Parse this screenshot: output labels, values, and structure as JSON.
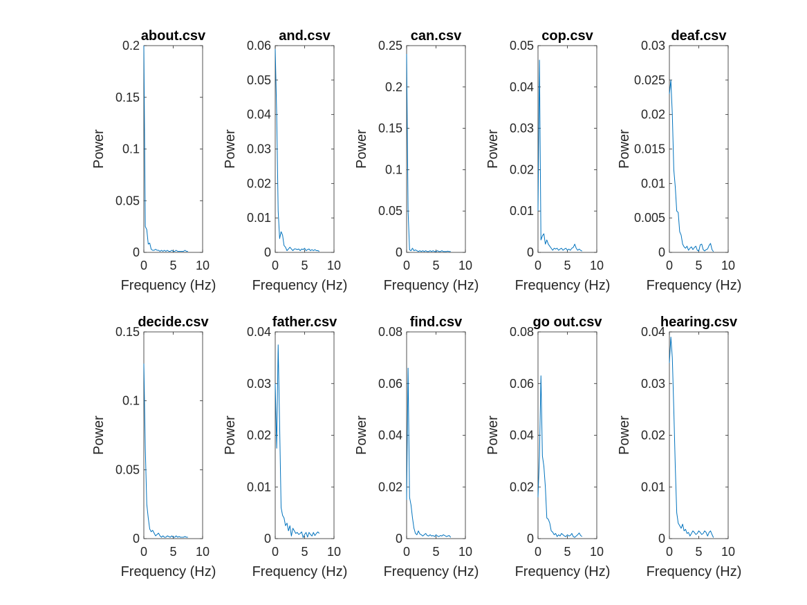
{
  "figure": {
    "background": "#ffffff",
    "line_color": "#0072bd",
    "axis_color": "#262626"
  },
  "chart_data": [
    {
      "type": "line",
      "title": "about.csv",
      "xlabel": "Frequency (Hz)",
      "ylabel": "Power",
      "xlim": [
        0,
        10
      ],
      "ylim": [
        0,
        0.2
      ],
      "xticks": [
        "0",
        "5",
        "10"
      ],
      "yticks": [
        "0",
        "0.05",
        "0.1",
        "0.15",
        "0.2"
      ],
      "x": [
        0,
        0.25,
        0.5,
        0.75,
        1,
        1.25,
        1.5,
        1.75,
        2,
        2.25,
        2.5,
        2.75,
        3,
        3.25,
        3.5,
        3.75,
        4,
        4.25,
        4.5,
        4.75,
        5,
        5.25,
        5.5,
        5.75,
        6,
        6.25,
        6.5,
        6.75,
        7,
        7.25,
        7.5
      ],
      "y": [
        0.2,
        0.025,
        0.022,
        0.008,
        0.009,
        0.003,
        0.002,
        0.002,
        0.003,
        0.002,
        0.002,
        0.001,
        0.002,
        0.001,
        0.002,
        0.001,
        0.002,
        0.001,
        0.001,
        0.002,
        0.001,
        0.001,
        0.002,
        0.001,
        0.001,
        0.001,
        0.001,
        0.001,
        0.002,
        0.001,
        0.001
      ]
    },
    {
      "type": "line",
      "title": "and.csv",
      "xlabel": "Frequency (Hz)",
      "ylabel": "Power",
      "xlim": [
        0,
        10
      ],
      "ylim": [
        0,
        0.06
      ],
      "xticks": [
        "0",
        "5",
        "10"
      ],
      "yticks": [
        "0",
        "0.01",
        "0.02",
        "0.03",
        "0.04",
        "0.05",
        "0.06"
      ],
      "x": [
        0,
        0.25,
        0.5,
        0.75,
        1,
        1.25,
        1.5,
        1.75,
        2,
        2.25,
        2.5,
        2.75,
        3,
        3.25,
        3.5,
        3.75,
        4,
        4.25,
        4.5,
        4.75,
        5,
        5.25,
        5.5,
        5.75,
        6,
        6.25,
        6.5,
        6.75,
        7,
        7.25,
        7.5
      ],
      "y": [
        0.059,
        0.04,
        0.012,
        0.004,
        0.006,
        0.005,
        0.002,
        0.0015,
        0.0005,
        0.001,
        0.0015,
        0.001,
        0.0005,
        0.001,
        0.001,
        0.0008,
        0.001,
        0.0005,
        0.001,
        0.0008,
        0.0012,
        0.0005,
        0.0008,
        0.001,
        0.0005,
        0.0008,
        0.0005,
        0.0008,
        0.0005,
        0.0005,
        0.0003
      ]
    },
    {
      "type": "line",
      "title": "can.csv",
      "xlabel": "Frequency (Hz)",
      "ylabel": "Power",
      "xlim": [
        0,
        10
      ],
      "ylim": [
        0,
        0.25
      ],
      "xticks": [
        "0",
        "5",
        "10"
      ],
      "yticks": [
        "0",
        "0.05",
        "0.1",
        "0.15",
        "0.2",
        "0.25"
      ],
      "x": [
        0,
        0.25,
        0.5,
        0.75,
        1,
        1.25,
        1.5,
        1.75,
        2,
        2.25,
        2.5,
        2.75,
        3,
        3.25,
        3.5,
        3.75,
        4,
        4.25,
        4.5,
        4.75,
        5,
        5.25,
        5.5,
        5.75,
        6,
        6.25,
        6.5,
        6.75,
        7,
        7.25,
        7.5
      ],
      "y": [
        0.24,
        0.05,
        0.003,
        0.002,
        0.005,
        0.002,
        0.003,
        0.002,
        0.001,
        0.002,
        0.001,
        0.002,
        0.001,
        0.002,
        0.001,
        0.001,
        0.002,
        0.001,
        0.002,
        0.001,
        0.001,
        0.002,
        0.001,
        0.001,
        0.002,
        0.001,
        0.001,
        0.001,
        0.0015,
        0.001,
        0.001
      ]
    },
    {
      "type": "line",
      "title": "cop.csv",
      "xlabel": "Frequency (Hz)",
      "ylabel": "Power",
      "xlim": [
        0,
        10
      ],
      "ylim": [
        0,
        0.05
      ],
      "xticks": [
        "0",
        "5",
        "10"
      ],
      "yticks": [
        "0",
        "0.01",
        "0.02",
        "0.03",
        "0.04",
        "0.05"
      ],
      "x": [
        0,
        0.25,
        0.5,
        0.75,
        1,
        1.25,
        1.5,
        1.75,
        2,
        2.25,
        2.5,
        2.75,
        3,
        3.25,
        3.5,
        3.75,
        4,
        4.25,
        4.5,
        4.75,
        5,
        5.25,
        5.5,
        5.75,
        6,
        6.25,
        6.5,
        6.75,
        7,
        7.25,
        7.5
      ],
      "y": [
        0.01,
        0.0465,
        0.003,
        0.004,
        0.0045,
        0.002,
        0.003,
        0.002,
        0.0015,
        0.001,
        0.0005,
        0.001,
        0.0008,
        0.001,
        0.0005,
        0.0008,
        0.001,
        0.0005,
        0.0008,
        0.001,
        0.0005,
        0.0008,
        0.0005,
        0.001,
        0.0012,
        0.002,
        0.001,
        0.0005,
        0.0008,
        0.0005,
        0.0003
      ]
    },
    {
      "type": "line",
      "title": "deaf.csv",
      "xlabel": "Frequency (Hz)",
      "ylabel": "Power",
      "xlim": [
        0,
        10
      ],
      "ylim": [
        0,
        0.03
      ],
      "xticks": [
        "0",
        "5",
        "10"
      ],
      "yticks": [
        "0",
        "0.005",
        "0.01",
        "0.015",
        "0.02",
        "0.025",
        "0.03"
      ],
      "x": [
        0,
        0.25,
        0.5,
        0.75,
        1,
        1.25,
        1.5,
        1.75,
        2,
        2.25,
        2.5,
        2.75,
        3,
        3.25,
        3.5,
        3.75,
        4,
        4.25,
        4.5,
        4.75,
        5,
        5.25,
        5.5,
        5.75,
        6,
        6.25,
        6.5,
        6.75,
        7,
        7.25,
        7.5
      ],
      "y": [
        0.023,
        0.025,
        0.02,
        0.012,
        0.0095,
        0.006,
        0.0058,
        0.003,
        0.0025,
        0.0012,
        0.0008,
        0.0006,
        0.0009,
        0.0003,
        0.0006,
        0.0008,
        0.0004,
        0.0007,
        0.0009,
        0.0003,
        0.0002,
        0.0011,
        0.0012,
        0.0004,
        0.0002,
        0.0004,
        0.0005,
        0.001,
        0.0013,
        0.0004,
        0.0001
      ]
    },
    {
      "type": "line",
      "title": "decide.csv",
      "xlabel": "Frequency (Hz)",
      "ylabel": "Power",
      "xlim": [
        0,
        10
      ],
      "ylim": [
        0,
        0.15
      ],
      "xticks": [
        "0",
        "5",
        "10"
      ],
      "yticks": [
        "0",
        "0.05",
        "0.1",
        "0.15"
      ],
      "x": [
        0,
        0.25,
        0.5,
        0.75,
        1,
        1.25,
        1.5,
        1.75,
        2,
        2.25,
        2.5,
        2.75,
        3,
        3.25,
        3.5,
        3.75,
        4,
        4.25,
        4.5,
        4.75,
        5,
        5.25,
        5.5,
        5.75,
        6,
        6.25,
        6.5,
        6.75,
        7,
        7.25,
        7.5
      ],
      "y": [
        0.127,
        0.065,
        0.025,
        0.015,
        0.007,
        0.005,
        0.006,
        0.004,
        0.002,
        0.003,
        0.004,
        0.002,
        0.001,
        0.002,
        0.001,
        0.001,
        0.002,
        0.0015,
        0.001,
        0.002,
        0.001,
        0.001,
        0.002,
        0.001,
        0.0015,
        0.001,
        0.001,
        0.001,
        0.0015,
        0.001,
        0.001
      ]
    },
    {
      "type": "line",
      "title": "father.csv",
      "xlabel": "Frequency (Hz)",
      "ylabel": "Power",
      "xlim": [
        0,
        10
      ],
      "ylim": [
        0,
        0.04
      ],
      "xticks": [
        "0",
        "5",
        "10"
      ],
      "yticks": [
        "0",
        "0.01",
        "0.02",
        "0.03",
        "0.04"
      ],
      "x": [
        0,
        0.25,
        0.5,
        0.75,
        1,
        1.25,
        1.5,
        1.75,
        2,
        2.25,
        2.5,
        2.75,
        3,
        3.25,
        3.5,
        3.75,
        4,
        4.25,
        4.5,
        4.75,
        5,
        5.25,
        5.5,
        5.75,
        6,
        6.25,
        6.5,
        6.75,
        7,
        7.25,
        7.5
      ],
      "y": [
        0.03,
        0.0175,
        0.0375,
        0.022,
        0.006,
        0.0045,
        0.004,
        0.0025,
        0.003,
        0.0015,
        0.0025,
        0.0005,
        0.002,
        0.0015,
        0.001,
        0.0012,
        0.0008,
        0.001,
        0.0013,
        0.0002,
        0.0008,
        0.0012,
        0.0003,
        0.0012,
        0.0008,
        0.0005,
        0.0012,
        0.0006,
        0.001,
        0.0013,
        0.001
      ]
    },
    {
      "type": "line",
      "title": "find.csv",
      "xlabel": "Frequency (Hz)",
      "ylabel": "Power",
      "xlim": [
        0,
        10
      ],
      "ylim": [
        0,
        0.08
      ],
      "xticks": [
        "0",
        "5",
        "10"
      ],
      "yticks": [
        "0",
        "0.02",
        "0.04",
        "0.06",
        "0.08"
      ],
      "x": [
        0,
        0.25,
        0.5,
        0.75,
        1,
        1.25,
        1.5,
        1.75,
        2,
        2.25,
        2.5,
        2.75,
        3,
        3.25,
        3.5,
        3.75,
        4,
        4.25,
        4.5,
        4.75,
        5,
        5.25,
        5.5,
        5.75,
        6,
        6.25,
        6.5,
        6.75,
        7,
        7.25,
        7.5
      ],
      "y": [
        0.015,
        0.066,
        0.016,
        0.013,
        0.008,
        0.004,
        0.002,
        0.0015,
        0.003,
        0.0018,
        0.0015,
        0.001,
        0.0015,
        0.002,
        0.0012,
        0.001,
        0.0015,
        0.001,
        0.0012,
        0.0008,
        0.0015,
        0.001,
        0.0008,
        0.0012,
        0.001,
        0.0015,
        0.0012,
        0.0008,
        0.001,
        0.0012,
        0.0005
      ]
    },
    {
      "type": "line",
      "title": "go out.csv",
      "xlabel": "Frequency (Hz)",
      "ylabel": "Power",
      "xlim": [
        0,
        10
      ],
      "ylim": [
        0,
        0.08
      ],
      "xticks": [
        "0",
        "5",
        "10"
      ],
      "yticks": [
        "0",
        "0.02",
        "0.04",
        "0.06",
        "0.08"
      ],
      "x": [
        0,
        0.25,
        0.5,
        0.75,
        1,
        1.25,
        1.5,
        1.75,
        2,
        2.25,
        2.5,
        2.75,
        3,
        3.25,
        3.5,
        3.75,
        4,
        4.25,
        4.5,
        4.75,
        5,
        5.25,
        5.5,
        5.75,
        6,
        6.25,
        6.5,
        6.75,
        7,
        7.25,
        7.5
      ],
      "y": [
        0.016,
        0.032,
        0.063,
        0.032,
        0.028,
        0.02,
        0.008,
        0.0075,
        0.006,
        0.003,
        0.0025,
        0.0015,
        0.002,
        0.0008,
        0.0015,
        0.001,
        0.002,
        0.0015,
        0.001,
        0.0008,
        0.0015,
        0.001,
        0.0012,
        0.002,
        0.0008,
        0.0005,
        0.001,
        0.0015,
        0.0022,
        0.0012,
        0.0008
      ]
    },
    {
      "type": "line",
      "title": "hearing.csv",
      "xlabel": "Frequency (Hz)",
      "ylabel": "Power",
      "xlim": [
        0,
        10
      ],
      "ylim": [
        0,
        0.04
      ],
      "xticks": [
        "0",
        "5",
        "10"
      ],
      "yticks": [
        "0",
        "0.01",
        "0.02",
        "0.03",
        "0.04"
      ],
      "x": [
        0,
        0.25,
        0.5,
        0.75,
        1,
        1.25,
        1.5,
        1.75,
        2,
        2.25,
        2.5,
        2.75,
        3,
        3.25,
        3.5,
        3.75,
        4,
        4.25,
        4.5,
        4.75,
        5,
        5.25,
        5.5,
        5.75,
        6,
        6.25,
        6.5,
        6.75,
        7,
        7.25,
        7.5
      ],
      "y": [
        0.034,
        0.039,
        0.035,
        0.025,
        0.014,
        0.005,
        0.003,
        0.0025,
        0.002,
        0.0028,
        0.0015,
        0.0018,
        0.001,
        0.0012,
        0.0005,
        0.001,
        0.0015,
        0.0012,
        0.0008,
        0.001,
        0.0015,
        0.0012,
        0.0008,
        0.001,
        0.0015,
        0.0012,
        0.0005,
        0.0012,
        0.0015,
        0.0008,
        0.0002
      ]
    }
  ]
}
